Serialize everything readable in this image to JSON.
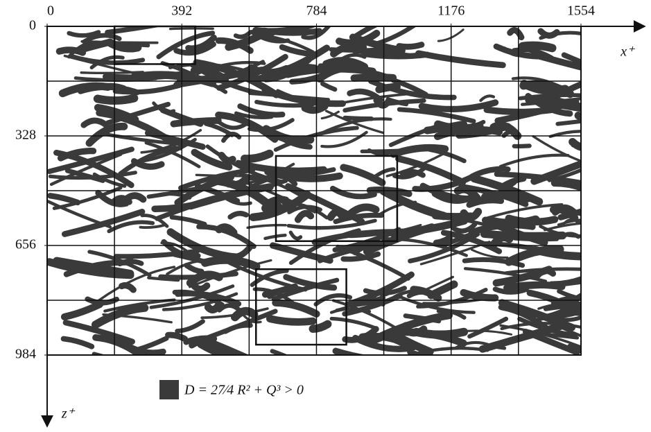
{
  "chart_data": {
    "type": "field-map",
    "x_label": "x⁺",
    "y_label": "z⁺",
    "xlim": [
      0,
      1554
    ],
    "ylim": [
      0,
      984
    ],
    "xticks": [
      0,
      392,
      784,
      1176,
      1554
    ],
    "yticks": [
      0,
      328,
      656,
      984
    ],
    "xgrid": [
      196,
      392,
      588,
      784,
      980,
      1176,
      1372
    ],
    "ygrid": [
      164,
      328,
      492,
      656,
      820
    ],
    "boxes": [
      {
        "x": [
          196,
          431
        ],
        "z": [
          0,
          113
        ]
      },
      {
        "x": [
          666,
          1019
        ],
        "z": [
          388,
          643
        ]
      },
      {
        "x": [
          608,
          871
        ],
        "z": [
          727,
          953
        ]
      }
    ],
    "legend": {
      "label": "D = 27⁄4 R² + Q³ > 0",
      "color": "#3a3a3a"
    }
  }
}
